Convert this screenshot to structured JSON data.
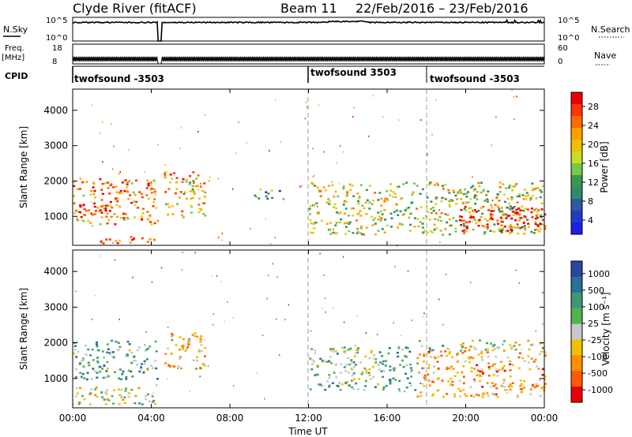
{
  "header": {
    "station": "Clyde River (fitACF)",
    "beam": "Beam 11",
    "date_range": "22/Feb/2016 – 23/Feb/2016"
  },
  "strips": {
    "nsky": {
      "label": "N.Sky",
      "ticks": [
        "10^5",
        "10^0"
      ],
      "right_label": "N.Search",
      "right_ticks": [
        "10^5",
        "10^0"
      ]
    },
    "freq": {
      "label_line1": "Freq.",
      "label_line2": "[MHz]",
      "ticks": [
        "18",
        "8"
      ],
      "right_label": "Nave",
      "right_ticks": [
        "60",
        "0"
      ]
    },
    "cpid": {
      "label": "CPID",
      "segments": [
        {
          "name": "twofsound -3503",
          "start_hour": 0,
          "end_hour": 12
        },
        {
          "name": "twofsound 3503",
          "start_hour": 12,
          "end_hour": 18
        },
        {
          "name": "twofsound -3503",
          "start_hour": 18,
          "end_hour": 24
        }
      ]
    }
  },
  "x_axis": {
    "title": "Time UT",
    "ticks": [
      "00:00",
      "04:00",
      "08:00",
      "12:00",
      "16:00",
      "20:00",
      "00:00"
    ],
    "range_hours": [
      0,
      24
    ]
  },
  "panels": {
    "power": {
      "ylabel": "Slant Range [km]",
      "yticks": [
        "1000",
        "2000",
        "3000",
        "4000"
      ],
      "colorbar_label": "Power [dB]",
      "colorbar_ticks": [
        "28",
        "24",
        "20",
        "16",
        "12",
        "8",
        "4"
      ],
      "colorbar_colors": [
        "#e80000",
        "#ff3300",
        "#ff6a00",
        "#ffa000",
        "#f0c000",
        "#c8dc28",
        "#78c84a",
        "#3c9650",
        "#2d8c6e",
        "#2d5aa0",
        "#1e3cc8",
        "#1e1ee6"
      ]
    },
    "velocity": {
      "ylabel": "Slant Range [km]",
      "yticks": [
        "1000",
        "2000",
        "3000",
        "4000"
      ],
      "colorbar_label": "Velocity [m s⁻¹]",
      "colorbar_ticks": [
        "1000",
        "500",
        "100",
        "25",
        "-25",
        "-100",
        "-500",
        "-1000"
      ],
      "colorbar_colors": [
        "#2848a0",
        "#2d6e96",
        "#3c9678",
        "#50b450",
        "#c8c8c8",
        "#f0c000",
        "#ff9000",
        "#ff5a00",
        "#e80000"
      ]
    }
  },
  "chart_data": [
    {
      "type": "line",
      "title": "N.Sky / N.Search",
      "x_label": "Time UT",
      "x_range_hours": [
        0,
        24
      ],
      "y_scale": "log",
      "y_range": [
        1,
        100000
      ],
      "note_gap_hours": [
        4.35,
        4.5
      ]
    },
    {
      "type": "line",
      "title": "Freq. / Nave",
      "y_range_mhz": [
        8,
        18
      ],
      "frequency_mhz_approx": 10.5,
      "note_gap_hours": [
        4.35,
        4.5
      ]
    },
    {
      "type": "heatmap",
      "title": "Power",
      "x_label": "Time UT",
      "y_label": "Slant Range [km]",
      "x_range_hours": [
        0,
        24
      ],
      "y_range_km": [
        180,
        4600
      ],
      "value_unit": "dB",
      "value_range": [
        0,
        30
      ],
      "regions": [
        {
          "t0": 0.0,
          "t1": 4.3,
          "r0": 800,
          "r1": 2100,
          "level": 22
        },
        {
          "t0": 0.0,
          "t1": 2.0,
          "r0": 1000,
          "r1": 1400,
          "level": 28
        },
        {
          "t0": 1.0,
          "t1": 4.3,
          "r0": 250,
          "r1": 450,
          "level": 26
        },
        {
          "t0": 4.6,
          "t1": 6.7,
          "r0": 1000,
          "r1": 2300,
          "level": 20
        },
        {
          "t0": 9.2,
          "t1": 10.8,
          "r0": 1500,
          "r1": 1800,
          "level": 10
        },
        {
          "t0": 12.0,
          "t1": 24.0,
          "r0": 500,
          "r1": 2000,
          "level": 16
        },
        {
          "t0": 19.5,
          "t1": 24.0,
          "r0": 600,
          "r1": 1300,
          "level": 29
        }
      ]
    },
    {
      "type": "heatmap",
      "title": "Velocity",
      "x_label": "Time UT",
      "y_label": "Slant Range [km]",
      "x_range_hours": [
        0,
        24
      ],
      "y_range_km": [
        180,
        4600
      ],
      "value_unit": "m s^-1",
      "value_range": [
        -1000,
        1000
      ],
      "regions": [
        {
          "t0": 0.0,
          "t1": 4.3,
          "r0": 1000,
          "r1": 2100,
          "level": 300
        },
        {
          "t0": 0.0,
          "t1": 4.3,
          "r0": 300,
          "r1": 800,
          "level": 0
        },
        {
          "t0": 4.6,
          "t1": 6.7,
          "r0": 1300,
          "r1": 2300,
          "level": -300
        },
        {
          "t0": 12.0,
          "t1": 17.5,
          "r0": 700,
          "r1": 1900,
          "level": 200
        },
        {
          "t0": 17.5,
          "t1": 24.0,
          "r0": 500,
          "r1": 1800,
          "level": -400
        },
        {
          "t0": 17.5,
          "t1": 24.0,
          "r0": 1800,
          "r1": 2100,
          "level": 0
        }
      ]
    }
  ]
}
